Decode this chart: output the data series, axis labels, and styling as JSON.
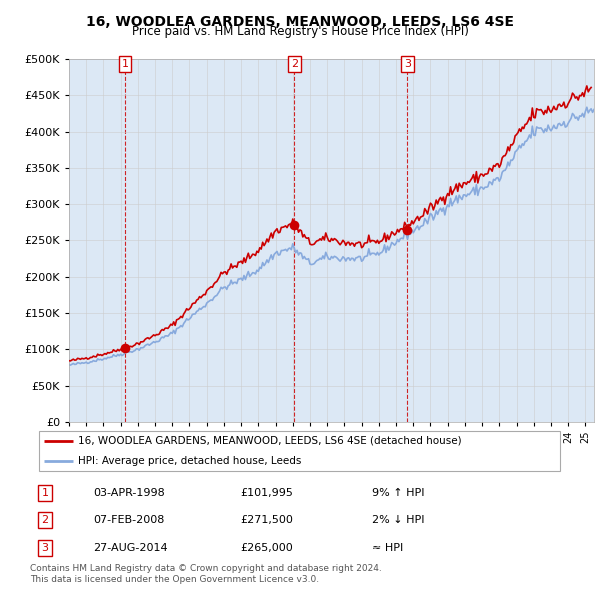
{
  "title": "16, WOODLEA GARDENS, MEANWOOD, LEEDS, LS6 4SE",
  "subtitle": "Price paid vs. HM Land Registry's House Price Index (HPI)",
  "legend_label_red": "16, WOODLEA GARDENS, MEANWOOD, LEEDS, LS6 4SE (detached house)",
  "legend_label_blue": "HPI: Average price, detached house, Leeds",
  "footer1": "Contains HM Land Registry data © Crown copyright and database right 2024.",
  "footer2": "This data is licensed under the Open Government Licence v3.0.",
  "transactions": [
    {
      "num": 1,
      "date": "03-APR-1998",
      "price": 101995,
      "rel": "9% ↑ HPI",
      "year": 1998.25
    },
    {
      "num": 2,
      "date": "07-FEB-2008",
      "price": 271500,
      "rel": "2% ↓ HPI",
      "year": 2008.1
    },
    {
      "num": 3,
      "date": "27-AUG-2014",
      "price": 265000,
      "rel": "≈ HPI",
      "year": 2014.65
    }
  ],
  "ylim": [
    0,
    500000
  ],
  "yticks": [
    0,
    50000,
    100000,
    150000,
    200000,
    250000,
    300000,
    350000,
    400000,
    450000,
    500000
  ],
  "xlim_start": 1995.0,
  "xlim_end": 2025.5,
  "grid_color": "#cccccc",
  "hpi_color": "#88aadd",
  "property_color": "#cc0000",
  "vline_color": "#cc0000",
  "background_color": "#dce8f5",
  "plot_bg": "#dce8f5"
}
